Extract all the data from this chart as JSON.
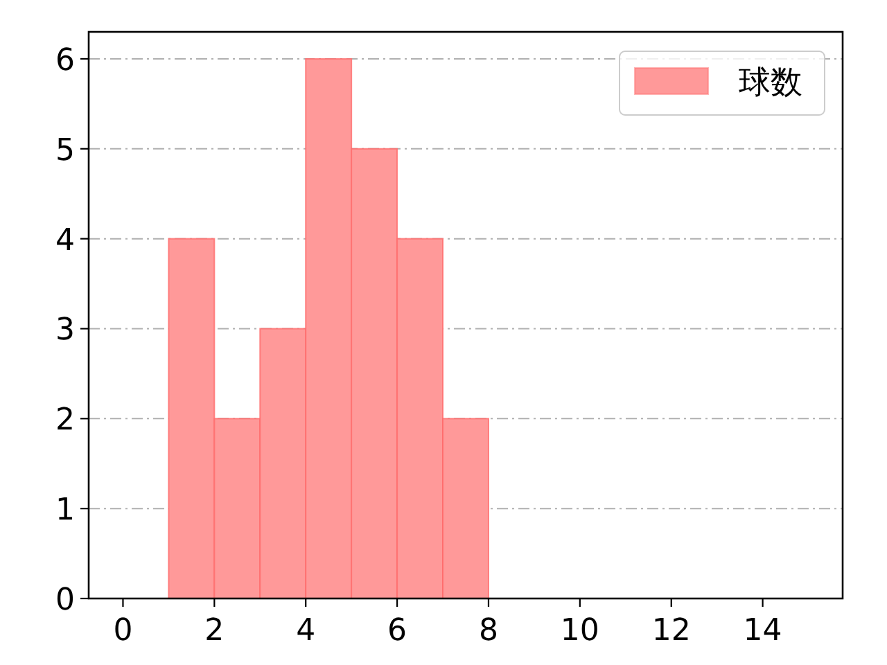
{
  "chart_data": {
    "type": "histogram",
    "bins": [
      1,
      2,
      3,
      4,
      5,
      6,
      7,
      8
    ],
    "series": [
      {
        "name": "球数",
        "color": "#ff9999",
        "values": [
          4,
          2,
          3,
          6,
          5,
          4,
          2
        ]
      }
    ],
    "xlim": [
      -0.75,
      15.75
    ],
    "ylim": [
      0,
      6.3
    ],
    "xticks": [
      0,
      2,
      4,
      6,
      8,
      10,
      12,
      14
    ],
    "yticks": [
      0,
      1,
      2,
      3,
      4,
      5,
      6
    ],
    "grid": "y",
    "legend": "top right"
  }
}
